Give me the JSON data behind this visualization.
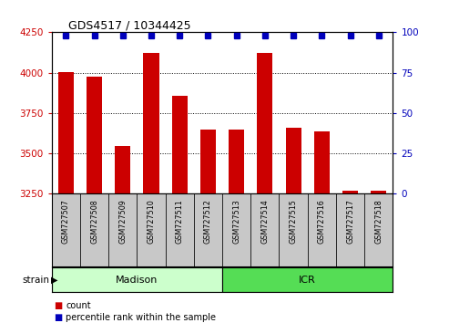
{
  "title": "GDS4517 / 10344425",
  "samples": [
    "GSM727507",
    "GSM727508",
    "GSM727509",
    "GSM727510",
    "GSM727511",
    "GSM727512",
    "GSM727513",
    "GSM727514",
    "GSM727515",
    "GSM727516",
    "GSM727517",
    "GSM727518"
  ],
  "counts": [
    4005,
    3975,
    3545,
    4125,
    3855,
    3645,
    3645,
    4125,
    3660,
    3635,
    3270,
    3270
  ],
  "percentile_y": [
    98,
    98,
    98,
    98,
    98,
    98,
    98,
    98,
    98,
    98,
    98,
    98
  ],
  "ylim_left": [
    3250,
    4250
  ],
  "ylim_right": [
    0,
    100
  ],
  "yticks_left": [
    3250,
    3500,
    3750,
    4000,
    4250
  ],
  "yticks_right": [
    0,
    25,
    50,
    75,
    100
  ],
  "hlines": [
    3500,
    3750,
    4000
  ],
  "bar_color": "#cc0000",
  "dot_color": "#0000bb",
  "bg_color": "#ffffff",
  "tick_cell_color": "#c8c8c8",
  "madison_color": "#ccffcc",
  "icr_color": "#55dd55",
  "legend_count": "count",
  "legend_percentile": "percentile rank within the sample",
  "strain_label": "strain",
  "bar_width": 0.55,
  "dot_size": 5,
  "n_samples": 12,
  "n_madison": 6,
  "n_icr": 6
}
